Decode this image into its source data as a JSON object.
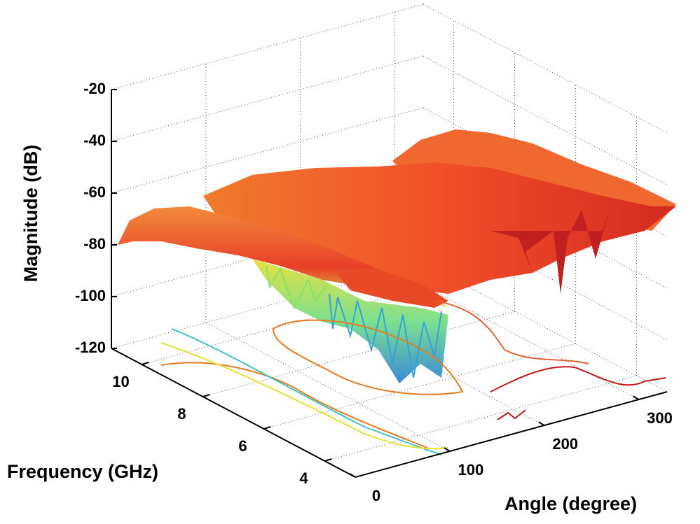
{
  "chart_data": {
    "type": "surface3d",
    "xlabel": "Angle (degree)",
    "ylabel": "Frequency (GHz)",
    "zlabel": "Magnitude (dB)",
    "xlim": [
      0,
      330
    ],
    "xticks": [
      0,
      100,
      200,
      300
    ],
    "ylim": [
      3,
      11
    ],
    "yticks": [
      4,
      6,
      8,
      10
    ],
    "zlim": [
      -120,
      -20
    ],
    "zticks": [
      -120,
      -100,
      -80,
      -60,
      -40,
      -20
    ],
    "grid": true
  }
}
